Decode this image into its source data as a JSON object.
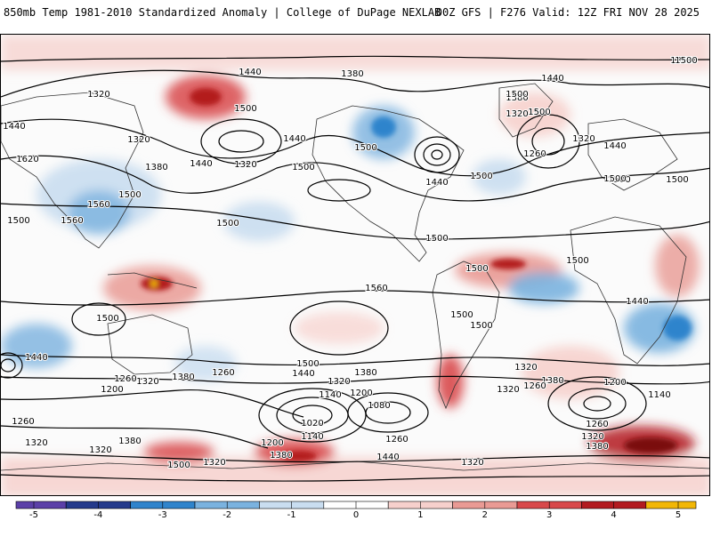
{
  "header": {
    "left_title": "850mb Temp 1981-2010 Standardized Anomaly | College of DuPage NEXLAB",
    "right_title": "00Z GFS | F276 Valid: 12Z FRI NOV 28 2025"
  },
  "map": {
    "contour_labels": [
      "1380",
      "1440",
      "1380",
      "1320",
      "1500",
      "1440",
      "1380",
      "1320",
      "1440",
      "1620",
      "1560",
      "1500",
      "1560",
      "1500",
      "1320",
      "1380",
      "1440",
      "1320",
      "1500",
      "1440",
      "1500",
      "1440",
      "1500",
      "1260",
      "1320",
      "1440",
      "1380",
      "1500",
      "1500",
      "1500",
      "1500",
      "1500",
      "1500",
      "1500",
      "1500",
      "1560",
      "1440",
      "1500",
      "1440",
      "1200",
      "1260",
      "1320",
      "1380",
      "1260",
      "1500",
      "1440",
      "1380",
      "1320",
      "1140",
      "1200",
      "1020",
      "1080",
      "1140",
      "1200",
      "1260",
      "1320",
      "1380",
      "1440",
      "1320",
      "1380",
      "1260",
      "1200",
      "1140",
      "1260",
      "1320",
      "1380",
      "1320",
      "1320",
      "1260",
      "1320",
      "1320",
      "1380",
      "1500",
      "1500",
      "1500",
      "1500",
      "1500",
      "1500"
    ]
  },
  "colorbar": {
    "ticks": [
      "-5",
      "-4",
      "-3",
      "-2",
      "-1",
      "0",
      "1",
      "2",
      "3",
      "4",
      "5"
    ],
    "colors": [
      "#5b3fa8",
      "#243a8c",
      "#2f84cc",
      "#7ab2df",
      "#c9ddf0",
      "#ffffff",
      "#f6d0cc",
      "#e99a94",
      "#d8484a",
      "#b31a1f",
      "#f2b705"
    ]
  }
}
